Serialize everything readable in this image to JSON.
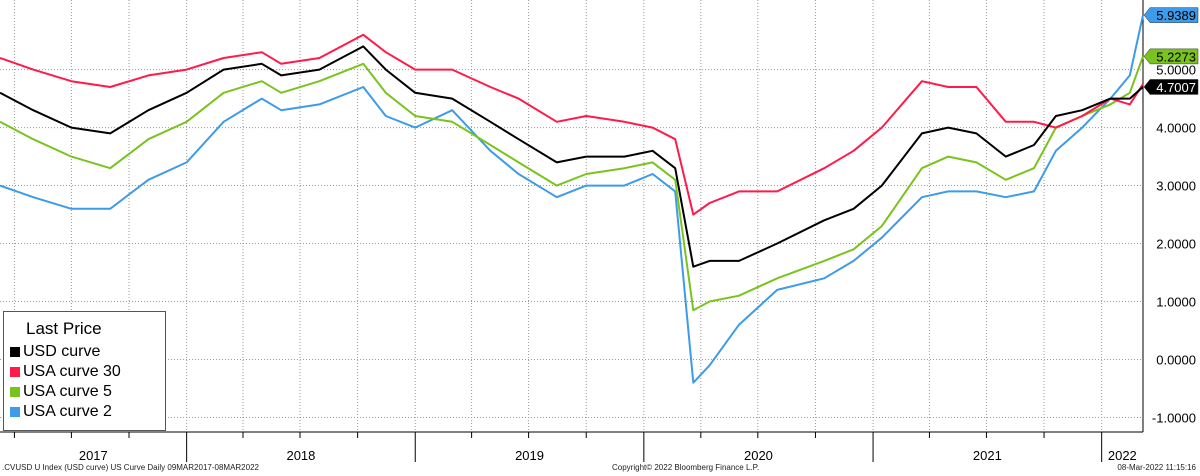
{
  "chart_data": {
    "type": "line",
    "title": "",
    "xlabel": "",
    "ylabel": "",
    "x_range": [
      "2017-03-09",
      "2022-03-08"
    ],
    "ylim": [
      -1.25,
      6.2
    ],
    "grid": true,
    "legend_placement": "bottom-left",
    "y_tick_labels": [
      "-1.0000",
      "0.0000",
      "1.0000",
      "2.0000",
      "3.0000",
      "4.0000",
      "5.0000"
    ],
    "y_tick_values": [
      -1,
      0,
      1,
      2,
      3,
      4,
      5
    ],
    "x_year_labels": [
      "2017",
      "2018",
      "2019",
      "2020",
      "2021",
      "2022"
    ],
    "legend": {
      "title": "Last Price",
      "entries": [
        "USD curve",
        "USA curve 30",
        "USA curve 5",
        "USA curve 2"
      ]
    },
    "series": [
      {
        "name": "USD curve",
        "color": "#000000",
        "last_value": "4.7007",
        "points": [
          [
            "2017-03-09",
            4.6
          ],
          [
            "2017-05-01",
            4.3
          ],
          [
            "2017-07-01",
            4.0
          ],
          [
            "2017-09-01",
            3.9
          ],
          [
            "2017-11-01",
            4.3
          ],
          [
            "2018-01-01",
            4.6
          ],
          [
            "2018-03-01",
            5.0
          ],
          [
            "2018-05-01",
            5.1
          ],
          [
            "2018-06-01",
            4.9
          ],
          [
            "2018-08-01",
            5.0
          ],
          [
            "2018-10-10",
            5.4
          ],
          [
            "2018-11-15",
            5.0
          ],
          [
            "2019-01-01",
            4.6
          ],
          [
            "2019-03-01",
            4.5
          ],
          [
            "2019-05-01",
            4.1
          ],
          [
            "2019-06-15",
            3.8
          ],
          [
            "2019-08-15",
            3.4
          ],
          [
            "2019-10-01",
            3.5
          ],
          [
            "2019-12-01",
            3.5
          ],
          [
            "2020-01-15",
            3.6
          ],
          [
            "2020-02-20",
            3.3
          ],
          [
            "2020-03-20",
            1.6
          ],
          [
            "2020-04-15",
            1.7
          ],
          [
            "2020-06-01",
            1.7
          ],
          [
            "2020-08-01",
            2.0
          ],
          [
            "2020-10-15",
            2.4
          ],
          [
            "2020-12-01",
            2.6
          ],
          [
            "2021-01-15",
            3.0
          ],
          [
            "2021-03-20",
            3.9
          ],
          [
            "2021-05-01",
            4.0
          ],
          [
            "2021-06-15",
            3.9
          ],
          [
            "2021-08-01",
            3.5
          ],
          [
            "2021-09-15",
            3.7
          ],
          [
            "2021-10-20",
            4.2
          ],
          [
            "2021-12-01",
            4.3
          ],
          [
            "2022-01-15",
            4.5
          ],
          [
            "2022-02-15",
            4.5
          ],
          [
            "2022-03-08",
            4.7007
          ]
        ]
      },
      {
        "name": "USA curve 30",
        "color": "#ff1a4a",
        "last_value": "",
        "points": [
          [
            "2017-03-09",
            5.2
          ],
          [
            "2017-05-01",
            5.0
          ],
          [
            "2017-07-01",
            4.8
          ],
          [
            "2017-09-01",
            4.7
          ],
          [
            "2017-11-01",
            4.9
          ],
          [
            "2018-01-01",
            5.0
          ],
          [
            "2018-03-01",
            5.2
          ],
          [
            "2018-05-01",
            5.3
          ],
          [
            "2018-06-01",
            5.1
          ],
          [
            "2018-08-01",
            5.2
          ],
          [
            "2018-10-10",
            5.6
          ],
          [
            "2018-11-15",
            5.3
          ],
          [
            "2019-01-01",
            5.0
          ],
          [
            "2019-03-01",
            5.0
          ],
          [
            "2019-05-01",
            4.7
          ],
          [
            "2019-06-15",
            4.5
          ],
          [
            "2019-08-15",
            4.1
          ],
          [
            "2019-10-01",
            4.2
          ],
          [
            "2019-12-01",
            4.1
          ],
          [
            "2020-01-15",
            4.0
          ],
          [
            "2020-02-20",
            3.8
          ],
          [
            "2020-03-20",
            2.5
          ],
          [
            "2020-04-15",
            2.7
          ],
          [
            "2020-06-01",
            2.9
          ],
          [
            "2020-08-01",
            2.9
          ],
          [
            "2020-10-15",
            3.3
          ],
          [
            "2020-12-01",
            3.6
          ],
          [
            "2021-01-15",
            4.0
          ],
          [
            "2021-03-20",
            4.8
          ],
          [
            "2021-05-01",
            4.7
          ],
          [
            "2021-06-15",
            4.7
          ],
          [
            "2021-08-01",
            4.1
          ],
          [
            "2021-09-15",
            4.1
          ],
          [
            "2021-10-20",
            4.0
          ],
          [
            "2021-12-01",
            4.2
          ],
          [
            "2022-01-15",
            4.5
          ],
          [
            "2022-02-15",
            4.4
          ],
          [
            "2022-03-08",
            4.75
          ]
        ]
      },
      {
        "name": "USA curve 5",
        "color": "#7ac31e",
        "last_value": "5.2273",
        "points": [
          [
            "2017-03-09",
            4.1
          ],
          [
            "2017-05-01",
            3.8
          ],
          [
            "2017-07-01",
            3.5
          ],
          [
            "2017-09-01",
            3.3
          ],
          [
            "2017-11-01",
            3.8
          ],
          [
            "2018-01-01",
            4.1
          ],
          [
            "2018-03-01",
            4.6
          ],
          [
            "2018-05-01",
            4.8
          ],
          [
            "2018-06-01",
            4.6
          ],
          [
            "2018-08-01",
            4.8
          ],
          [
            "2018-10-10",
            5.1
          ],
          [
            "2018-11-15",
            4.6
          ],
          [
            "2019-01-01",
            4.2
          ],
          [
            "2019-03-01",
            4.1
          ],
          [
            "2019-05-01",
            3.7
          ],
          [
            "2019-06-15",
            3.4
          ],
          [
            "2019-08-15",
            3.0
          ],
          [
            "2019-10-01",
            3.2
          ],
          [
            "2019-12-01",
            3.3
          ],
          [
            "2020-01-15",
            3.4
          ],
          [
            "2020-02-20",
            3.1
          ],
          [
            "2020-03-20",
            0.85
          ],
          [
            "2020-04-15",
            1.0
          ],
          [
            "2020-06-01",
            1.1
          ],
          [
            "2020-08-01",
            1.4
          ],
          [
            "2020-10-15",
            1.7
          ],
          [
            "2020-12-01",
            1.9
          ],
          [
            "2021-01-15",
            2.3
          ],
          [
            "2021-03-20",
            3.3
          ],
          [
            "2021-05-01",
            3.5
          ],
          [
            "2021-06-15",
            3.4
          ],
          [
            "2021-08-01",
            3.1
          ],
          [
            "2021-09-15",
            3.3
          ],
          [
            "2021-10-20",
            4.0
          ],
          [
            "2021-12-01",
            4.2
          ],
          [
            "2022-01-15",
            4.4
          ],
          [
            "2022-02-15",
            4.6
          ],
          [
            "2022-03-08",
            5.2273
          ]
        ]
      },
      {
        "name": "USA curve 2",
        "color": "#3d9be9",
        "last_value": "5.9389",
        "points": [
          [
            "2017-03-09",
            3.0
          ],
          [
            "2017-05-01",
            2.8
          ],
          [
            "2017-07-01",
            2.6
          ],
          [
            "2017-09-01",
            2.6
          ],
          [
            "2017-11-01",
            3.1
          ],
          [
            "2018-01-01",
            3.4
          ],
          [
            "2018-03-01",
            4.1
          ],
          [
            "2018-05-01",
            4.5
          ],
          [
            "2018-06-01",
            4.3
          ],
          [
            "2018-08-01",
            4.4
          ],
          [
            "2018-10-10",
            4.7
          ],
          [
            "2018-11-15",
            4.2
          ],
          [
            "2019-01-01",
            4.0
          ],
          [
            "2019-03-01",
            4.3
          ],
          [
            "2019-05-01",
            3.6
          ],
          [
            "2019-06-15",
            3.2
          ],
          [
            "2019-08-15",
            2.8
          ],
          [
            "2019-10-01",
            3.0
          ],
          [
            "2019-12-01",
            3.0
          ],
          [
            "2020-01-15",
            3.2
          ],
          [
            "2020-02-20",
            2.9
          ],
          [
            "2020-03-20",
            -0.4
          ],
          [
            "2020-04-15",
            -0.1
          ],
          [
            "2020-06-01",
            0.6
          ],
          [
            "2020-08-01",
            1.2
          ],
          [
            "2020-10-15",
            1.4
          ],
          [
            "2020-12-01",
            1.7
          ],
          [
            "2021-01-15",
            2.1
          ],
          [
            "2021-03-20",
            2.8
          ],
          [
            "2021-05-01",
            2.9
          ],
          [
            "2021-06-15",
            2.9
          ],
          [
            "2021-08-01",
            2.8
          ],
          [
            "2021-09-15",
            2.9
          ],
          [
            "2021-10-20",
            3.6
          ],
          [
            "2021-12-01",
            4.0
          ],
          [
            "2022-01-15",
            4.5
          ],
          [
            "2022-02-15",
            4.9
          ],
          [
            "2022-03-08",
            5.9389
          ]
        ]
      }
    ]
  },
  "footer": {
    "left": ".CVUSD U Index (USD curve) US Curve  Daily 09MAR2017-08MAR2022",
    "center": "Copyright© 2022 Bloomberg Finance L.P.",
    "right": "08-Mar-2022 11:15:16"
  }
}
